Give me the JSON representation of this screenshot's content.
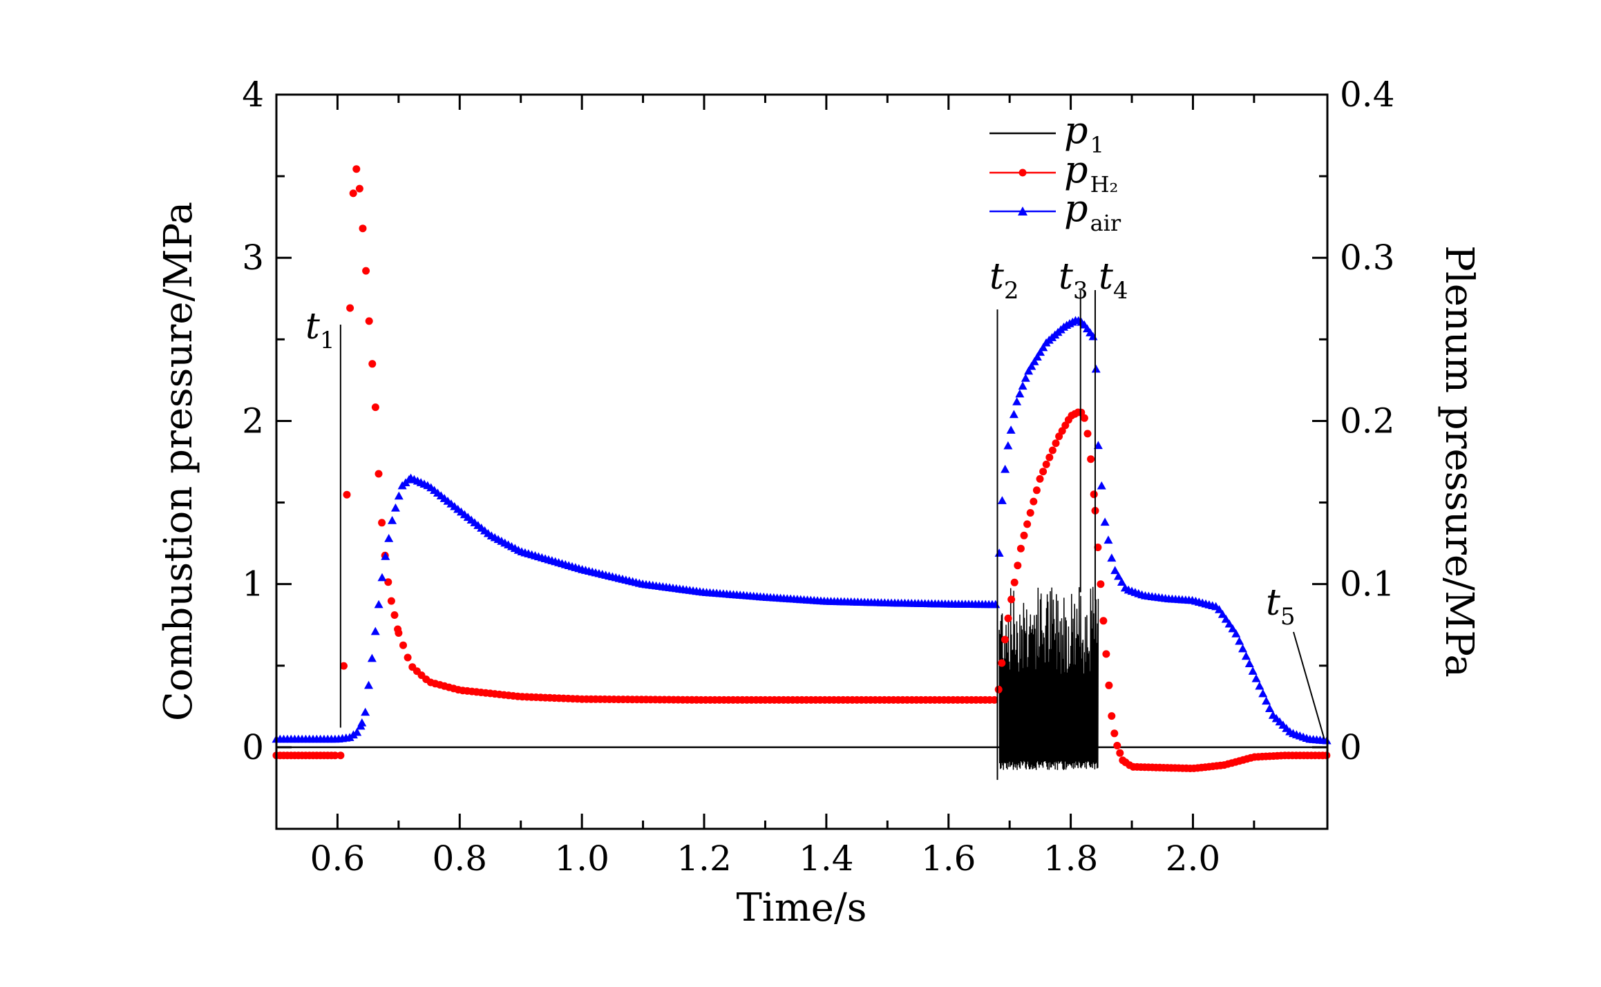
{
  "chart_data": {
    "type": "line",
    "xlabel": "Time/s",
    "ylabel_left": "Combustion pressure/MPa",
    "ylabel_right": "Plenum pressure/MPa",
    "xlim": [
      0.5,
      2.22
    ],
    "ylim_left": [
      -0.5,
      4.0
    ],
    "ylim_right": [
      -0.05,
      0.4
    ],
    "x_ticks": [
      "0.6",
      "0.8",
      "1.0",
      "1.2",
      "1.4",
      "1.6",
      "1.8",
      "2.0"
    ],
    "y_ticks_left": [
      "0",
      "1",
      "2",
      "3",
      "4"
    ],
    "y_ticks_right": [
      "0",
      "0.1",
      "0.2",
      "0.3",
      "0.4"
    ],
    "grid": false,
    "legend_position": "top-right",
    "legend": [
      {
        "symbol": "p",
        "sub": "1",
        "color": "#000000",
        "marker": "none"
      },
      {
        "symbol": "p",
        "sub": "H₂",
        "color": "#ff0000",
        "marker": "circle"
      },
      {
        "symbol": "p",
        "sub": "air",
        "color": "#0000ff",
        "marker": "triangle"
      }
    ],
    "markers": [
      {
        "symbol": "t",
        "sub": "1",
        "x": 0.605
      },
      {
        "symbol": "t",
        "sub": "2",
        "x": 1.68
      },
      {
        "symbol": "t",
        "sub": "3",
        "x": 1.816
      },
      {
        "symbol": "t",
        "sub": "4",
        "x": 1.84
      },
      {
        "symbol": "t",
        "sub": "5",
        "x": 2.215
      }
    ],
    "series": [
      {
        "name": "p1",
        "axis": "left",
        "color": "#000000",
        "baseline": 0.0,
        "oscillation": {
          "start": 1.683,
          "end": 1.845,
          "low": -0.14,
          "high": 1.0
        }
      },
      {
        "name": "pH2",
        "axis": "right",
        "color": "#ff0000",
        "points": [
          [
            0.5,
            -0.005
          ],
          [
            0.6,
            -0.005
          ],
          [
            0.605,
            -0.005
          ],
          [
            0.608,
            0.013
          ],
          [
            0.612,
            0.08
          ],
          [
            0.617,
            0.19
          ],
          [
            0.622,
            0.3
          ],
          [
            0.627,
            0.352
          ],
          [
            0.632,
            0.355
          ],
          [
            0.637,
            0.34
          ],
          [
            0.642,
            0.315
          ],
          [
            0.647,
            0.29
          ],
          [
            0.652,
            0.26
          ],
          [
            0.657,
            0.235
          ],
          [
            0.662,
            0.21
          ],
          [
            0.667,
            0.17
          ],
          [
            0.672,
            0.14
          ],
          [
            0.677,
            0.12
          ],
          [
            0.685,
            0.095
          ],
          [
            0.7,
            0.07
          ],
          [
            0.72,
            0.05
          ],
          [
            0.75,
            0.04
          ],
          [
            0.8,
            0.035
          ],
          [
            0.9,
            0.031
          ],
          [
            1.0,
            0.0295
          ],
          [
            1.2,
            0.029
          ],
          [
            1.4,
            0.029
          ],
          [
            1.6,
            0.029
          ],
          [
            1.68,
            0.029
          ],
          [
            1.685,
            0.045
          ],
          [
            1.69,
            0.06
          ],
          [
            1.7,
            0.085
          ],
          [
            1.72,
            0.125
          ],
          [
            1.75,
            0.165
          ],
          [
            1.78,
            0.19
          ],
          [
            1.8,
            0.203
          ],
          [
            1.816,
            0.206
          ],
          [
            1.825,
            0.2
          ],
          [
            1.835,
            0.17
          ],
          [
            1.845,
            0.12
          ],
          [
            1.855,
            0.07
          ],
          [
            1.862,
            0.04
          ],
          [
            1.868,
            0.015
          ],
          [
            1.875,
            0.002
          ],
          [
            1.885,
            -0.008
          ],
          [
            1.9,
            -0.012
          ],
          [
            2.0,
            -0.013
          ],
          [
            2.05,
            -0.011
          ],
          [
            2.1,
            -0.006
          ],
          [
            2.15,
            -0.005
          ],
          [
            2.22,
            -0.005
          ]
        ]
      },
      {
        "name": "pair",
        "axis": "right",
        "color": "#0000ff",
        "points": [
          [
            0.5,
            0.005
          ],
          [
            0.6,
            0.005
          ],
          [
            0.62,
            0.006
          ],
          [
            0.635,
            0.01
          ],
          [
            0.645,
            0.02
          ],
          [
            0.655,
            0.05
          ],
          [
            0.665,
            0.08
          ],
          [
            0.675,
            0.11
          ],
          [
            0.69,
            0.14
          ],
          [
            0.705,
            0.16
          ],
          [
            0.72,
            0.165
          ],
          [
            0.75,
            0.16
          ],
          [
            0.8,
            0.145
          ],
          [
            0.85,
            0.13
          ],
          [
            0.9,
            0.12
          ],
          [
            1.0,
            0.109
          ],
          [
            1.1,
            0.1
          ],
          [
            1.2,
            0.095
          ],
          [
            1.3,
            0.092
          ],
          [
            1.4,
            0.0895
          ],
          [
            1.5,
            0.0885
          ],
          [
            1.6,
            0.0878
          ],
          [
            1.68,
            0.0875
          ],
          [
            1.685,
            0.14
          ],
          [
            1.695,
            0.18
          ],
          [
            1.71,
            0.21
          ],
          [
            1.73,
            0.23
          ],
          [
            1.76,
            0.248
          ],
          [
            1.79,
            0.258
          ],
          [
            1.81,
            0.262
          ],
          [
            1.82,
            0.26
          ],
          [
            1.83,
            0.255
          ],
          [
            1.84,
            0.25
          ],
          [
            1.845,
            0.185
          ],
          [
            1.855,
            0.14
          ],
          [
            1.87,
            0.11
          ],
          [
            1.89,
            0.097
          ],
          [
            1.92,
            0.093
          ],
          [
            1.96,
            0.091
          ],
          [
            2.0,
            0.09
          ],
          [
            2.04,
            0.086
          ],
          [
            2.07,
            0.07
          ],
          [
            2.1,
            0.045
          ],
          [
            2.13,
            0.02
          ],
          [
            2.16,
            0.009
          ],
          [
            2.19,
            0.005
          ],
          [
            2.22,
            0.004
          ]
        ]
      }
    ]
  }
}
